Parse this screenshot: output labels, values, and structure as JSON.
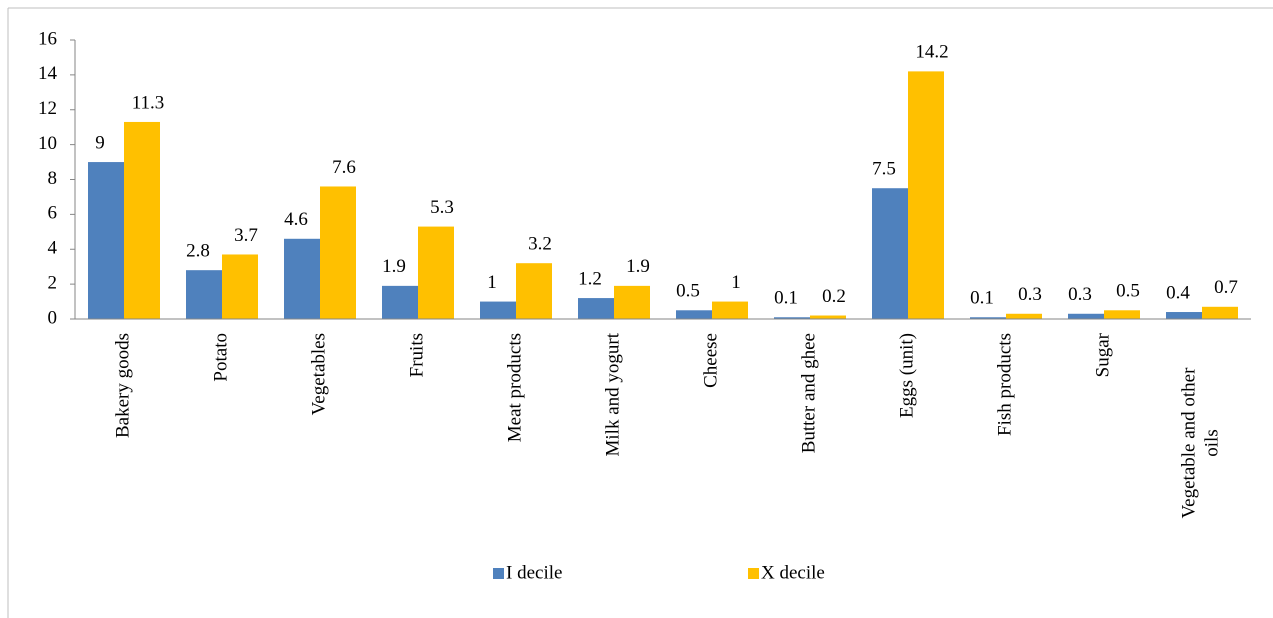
{
  "chart_data": {
    "type": "bar",
    "categories": [
      "Bakery goods",
      "Potato",
      "Vegetables",
      "Fruits",
      "Meat products",
      "Milk and yogurt",
      "Cheese",
      "Butter and ghee",
      "Eggs (unit)",
      "Fish products",
      "Sugar",
      "Vegetable and other oils"
    ],
    "series": [
      {
        "name": "I decile",
        "color": "#4f81bd",
        "values": [
          9,
          2.8,
          4.6,
          1.9,
          1,
          1.2,
          0.5,
          0.1,
          7.5,
          0.1,
          0.3,
          0.4
        ]
      },
      {
        "name": "X decile",
        "color": "#ffc000",
        "values": [
          11.3,
          3.7,
          7.6,
          5.3,
          3.2,
          1.9,
          1,
          0.2,
          14.2,
          0.3,
          0.5,
          0.7
        ]
      }
    ],
    "ylim": [
      0,
      16
    ],
    "yticks": [
      0,
      2,
      4,
      6,
      8,
      10,
      12,
      14,
      16
    ],
    "grid": false,
    "legend": "bottom"
  }
}
